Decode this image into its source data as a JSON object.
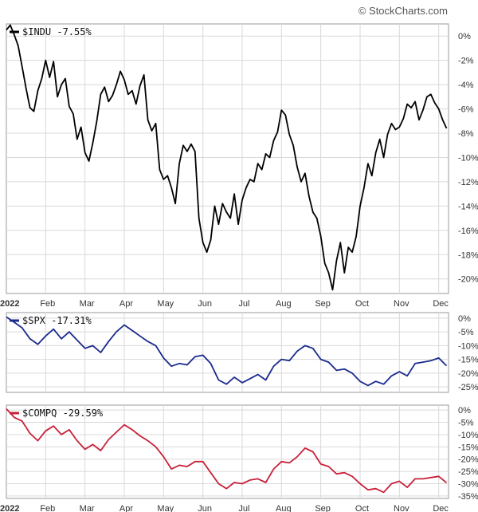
{
  "watermark": "© StockCharts.com",
  "colors": {
    "indu": "#000000",
    "spx": "#1a2a8c",
    "compq": "#c8213a",
    "grid": "#d9d9d9",
    "axis": "#999999"
  },
  "chart_data": [
    {
      "type": "line",
      "legend_label": "$INDU -7.55%",
      "ylim": [
        -21.2,
        1.0
      ],
      "yticks": [
        0,
        -2,
        -4,
        -6,
        -8,
        -10,
        -12,
        -14,
        -16,
        -18,
        -20
      ],
      "ytick_labels": [
        "0%",
        "-2%",
        "-4%",
        "-6%",
        "-8%",
        "-10%",
        "-12%",
        "-14%",
        "-16%",
        "-18%",
        "-20%"
      ],
      "xticks": [
        "2022",
        "Feb",
        "Mar",
        "Apr",
        "May",
        "Jun",
        "Jul",
        "Aug",
        "Sep",
        "Oct",
        "Nov",
        "Dec"
      ],
      "grid": true,
      "legend_position": "top-left",
      "series": [
        {
          "x": [
            0,
            0.1,
            0.2,
            0.3,
            0.4,
            0.5,
            0.6,
            0.7,
            0.8,
            0.9,
            1.0,
            1.1,
            1.2,
            1.3,
            1.4,
            1.5,
            1.6,
            1.7,
            1.8,
            1.9,
            2.0,
            2.1,
            2.2,
            2.3,
            2.4,
            2.5,
            2.6,
            2.7,
            2.8,
            2.9,
            3.0,
            3.1,
            3.2,
            3.3,
            3.4,
            3.5,
            3.6,
            3.7,
            3.8,
            3.9,
            4.0,
            4.1,
            4.2,
            4.3,
            4.4,
            4.5,
            4.6,
            4.7,
            4.8,
            4.9,
            5.0,
            5.1,
            5.2,
            5.3,
            5.4,
            5.5,
            5.6,
            5.7,
            5.8,
            5.9,
            6.0,
            6.1,
            6.2,
            6.3,
            6.4,
            6.5,
            6.6,
            6.7,
            6.8,
            6.9,
            7.0,
            7.1,
            7.2,
            7.3,
            7.4,
            7.5,
            7.6,
            7.7,
            7.8,
            7.9,
            8.0,
            8.1,
            8.2,
            8.3,
            8.4,
            8.5,
            8.6,
            8.7,
            8.8,
            8.9,
            9.0,
            9.1,
            9.2,
            9.3,
            9.4,
            9.5,
            9.6,
            9.7,
            9.8,
            9.9,
            10.0,
            10.1,
            10.2,
            10.3,
            10.4,
            10.5,
            10.6,
            10.7,
            10.8,
            10.9,
            11.0,
            11.1,
            11.2
          ],
          "y": [
            0.5,
            0.9,
            0.1,
            -0.8,
            -2.5,
            -4.3,
            -5.9,
            -6.2,
            -4.5,
            -3.5,
            -2.0,
            -3.4,
            -2.1,
            -5.0,
            -4.0,
            -3.5,
            -5.8,
            -6.4,
            -8.5,
            -7.5,
            -9.6,
            -10.3,
            -8.8,
            -7.0,
            -4.8,
            -4.2,
            -5.4,
            -4.9,
            -4.0,
            -2.9,
            -3.6,
            -4.8,
            -4.5,
            -5.6,
            -4.1,
            -3.2,
            -6.9,
            -7.8,
            -7.2,
            -11.0,
            -11.8,
            -11.5,
            -12.5,
            -13.8,
            -10.5,
            -9.0,
            -9.5,
            -8.9,
            -9.5,
            -15.0,
            -17.0,
            -17.8,
            -16.8,
            -14.0,
            -15.5,
            -13.8,
            -14.5,
            -15.0,
            -13.0,
            -15.5,
            -13.5,
            -12.5,
            -11.8,
            -12.0,
            -10.5,
            -11.0,
            -9.7,
            -10.0,
            -8.6,
            -7.9,
            -6.1,
            -6.5,
            -8.1,
            -9.0,
            -10.8,
            -12.0,
            -11.3,
            -13.2,
            -14.5,
            -15.0,
            -16.5,
            -18.7,
            -19.5,
            -20.9,
            -18.5,
            -17.0,
            -19.5,
            -17.4,
            -17.8,
            -16.5,
            -14.0,
            -12.5,
            -10.5,
            -11.5,
            -9.6,
            -8.5,
            -10.0,
            -8.1,
            -7.2,
            -7.7,
            -7.5,
            -6.8,
            -5.6,
            -5.9,
            -5.4,
            -6.9,
            -6.1,
            -5.0,
            -4.8,
            -5.5,
            -6.0,
            -6.9,
            -7.6
          ]
        }
      ]
    },
    {
      "type": "line",
      "legend_label": "$SPX -17.31%",
      "ylim": [
        -27,
        2
      ],
      "yticks": [
        0,
        -5,
        -10,
        -15,
        -20,
        -25
      ],
      "ytick_labels": [
        "0%",
        "-5%",
        "-10%",
        "-15%",
        "-20%",
        "-25%"
      ],
      "xticks": [],
      "grid": true,
      "legend_position": "top-left",
      "series": [
        {
          "x": [
            0,
            0.2,
            0.4,
            0.6,
            0.8,
            1.0,
            1.2,
            1.4,
            1.6,
            1.8,
            2.0,
            2.2,
            2.4,
            2.6,
            2.8,
            3.0,
            3.2,
            3.4,
            3.6,
            3.8,
            4.0,
            4.2,
            4.4,
            4.6,
            4.8,
            5.0,
            5.2,
            5.4,
            5.6,
            5.8,
            6.0,
            6.2,
            6.4,
            6.6,
            6.8,
            7.0,
            7.2,
            7.4,
            7.6,
            7.8,
            8.0,
            8.2,
            8.4,
            8.6,
            8.8,
            9.0,
            9.2,
            9.4,
            9.6,
            9.8,
            10.0,
            10.2,
            10.4,
            10.6,
            10.8,
            11.0,
            11.2
          ],
          "y": [
            0.4,
            -1.5,
            -3.5,
            -7.5,
            -9.5,
            -6.5,
            -4.0,
            -7.5,
            -5.0,
            -8.0,
            -11.0,
            -10.0,
            -12.5,
            -8.5,
            -5.0,
            -2.5,
            -4.5,
            -6.5,
            -8.5,
            -10.0,
            -14.5,
            -17.5,
            -16.5,
            -17.0,
            -14.0,
            -13.5,
            -16.5,
            -22.5,
            -24.0,
            -21.5,
            -23.5,
            -22.0,
            -20.5,
            -22.5,
            -17.5,
            -15.0,
            -15.5,
            -12.0,
            -10.0,
            -11.0,
            -15.0,
            -16.0,
            -19.0,
            -18.5,
            -20.0,
            -23.0,
            -24.5,
            -23.0,
            -24.0,
            -21.0,
            -19.5,
            -21.0,
            -16.5,
            -16.0,
            -15.5,
            -14.5,
            -17.3
          ]
        }
      ]
    },
    {
      "type": "line",
      "legend_label": "$COMPQ -29.59%",
      "ylim": [
        -36,
        2
      ],
      "yticks": [
        0,
        -5,
        -10,
        -15,
        -20,
        -25,
        -30,
        -35
      ],
      "ytick_labels": [
        "0%",
        "-5%",
        "-10%",
        "-15%",
        "-20%",
        "-25%",
        "-30%",
        "-35%"
      ],
      "xticks": [
        "2022",
        "Feb",
        "Mar",
        "Apr",
        "May",
        "Jun",
        "Jul",
        "Aug",
        "Sep",
        "Oct",
        "Nov",
        "Dec"
      ],
      "grid": true,
      "legend_position": "top-left",
      "series": [
        {
          "x": [
            0,
            0.2,
            0.4,
            0.6,
            0.8,
            1.0,
            1.2,
            1.4,
            1.6,
            1.8,
            2.0,
            2.2,
            2.4,
            2.6,
            2.8,
            3.0,
            3.2,
            3.4,
            3.6,
            3.8,
            4.0,
            4.2,
            4.4,
            4.6,
            4.8,
            5.0,
            5.2,
            5.4,
            5.6,
            5.8,
            6.0,
            6.2,
            6.4,
            6.6,
            6.8,
            7.0,
            7.2,
            7.4,
            7.6,
            7.8,
            8.0,
            8.2,
            8.4,
            8.6,
            8.8,
            9.0,
            9.2,
            9.4,
            9.6,
            9.8,
            10.0,
            10.2,
            10.4,
            10.6,
            10.8,
            11.0,
            11.2
          ],
          "y": [
            0.5,
            -3.0,
            -4.5,
            -9.5,
            -12.5,
            -8.5,
            -6.5,
            -10.0,
            -8.0,
            -12.5,
            -16.0,
            -14.0,
            -16.5,
            -12.0,
            -9.0,
            -6.0,
            -8.0,
            -10.5,
            -12.5,
            -15.0,
            -19.0,
            -24.0,
            -22.5,
            -23.0,
            -21.0,
            -21.0,
            -25.5,
            -30.0,
            -32.0,
            -29.5,
            -30.0,
            -28.5,
            -28.0,
            -29.5,
            -24.0,
            -21.0,
            -21.5,
            -19.0,
            -15.5,
            -17.0,
            -22.0,
            -23.0,
            -26.0,
            -25.5,
            -27.0,
            -30.0,
            -32.5,
            -32.0,
            -33.5,
            -30.0,
            -29.0,
            -31.5,
            -28.0,
            -28.0,
            -27.5,
            -27.0,
            -29.6
          ]
        }
      ]
    }
  ]
}
